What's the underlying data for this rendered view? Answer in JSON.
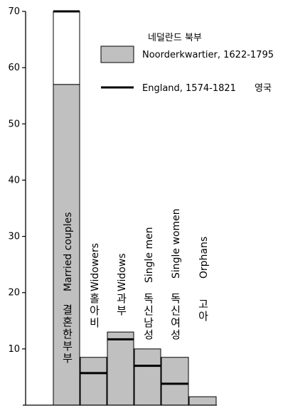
{
  "chart_data": {
    "type": "bar",
    "title": "",
    "xlabel": "",
    "ylabel": "",
    "ylim": [
      0,
      70
    ],
    "yticks": [
      10,
      20,
      30,
      40,
      50,
      60,
      70
    ],
    "grid": false,
    "categories": [
      {
        "en": "Married couples",
        "ko": "결혼한 부부"
      },
      {
        "en": "Widowers",
        "ko": "홀아비"
      },
      {
        "en": "Widows",
        "ko": "과부"
      },
      {
        "en": "Single men",
        "ko": "독신남성"
      },
      {
        "en": "Single women",
        "ko": "독신여성"
      },
      {
        "en": "Orphans",
        "ko": "고아"
      }
    ],
    "series": [
      {
        "name": "Noorderkwartier, 1622-1795",
        "name_ko": "네덜란드 북부",
        "mark": "bar",
        "color": "#c0c0c0",
        "values": [
          57,
          8.5,
          13,
          10,
          8.5,
          1.5
        ]
      },
      {
        "name": "England, 1574-1821",
        "name_ko": "영국",
        "mark": "line",
        "color": "#000000",
        "values": [
          70,
          5.7,
          11.7,
          7,
          3.8,
          null
        ]
      }
    ],
    "legend_position": "top-right"
  }
}
